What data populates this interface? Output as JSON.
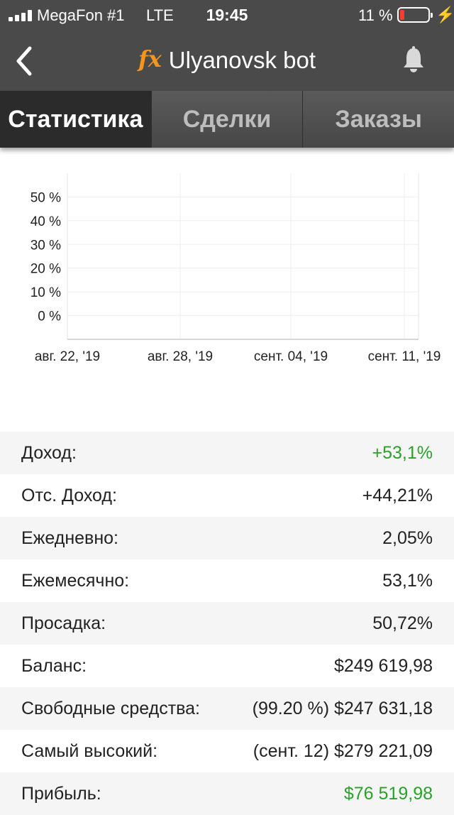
{
  "status": {
    "carrier": "MegaFon #1",
    "network": "LTE",
    "time": "19:45",
    "battery_percent": "11 %"
  },
  "header": {
    "logo": "fx",
    "title": "Ulyanovsk bot",
    "bell_icon": "bell-icon"
  },
  "tabs": [
    {
      "label": "Статистика",
      "active": true
    },
    {
      "label": "Сделки",
      "active": false
    },
    {
      "label": "Заказы",
      "active": false
    }
  ],
  "chart_data": {
    "type": "line",
    "x_tick_labels": [
      "авг. 22, '19",
      "авг. 28, '19",
      "сент. 04, '19",
      "сент. 11, '19"
    ],
    "y_tick_labels": [
      "50 %",
      "40 %",
      "30 %",
      "20 %",
      "10 %",
      "0 %"
    ],
    "ylim": [
      -10,
      60
    ],
    "x": [
      "2019-08-22",
      "2019-08-23",
      "2019-08-24",
      "2019-08-25",
      "2019-08-26",
      "2019-08-27",
      "2019-08-28",
      "2019-08-29",
      "2019-08-30",
      "2019-08-31",
      "2019-09-01",
      "2019-09-02",
      "2019-09-03",
      "2019-09-04",
      "2019-09-05",
      "2019-09-06",
      "2019-09-07",
      "2019-09-08",
      "2019-09-09",
      "2019-09-10",
      "2019-09-11",
      "2019-09-12"
    ],
    "series": [
      {
        "color": "#d9413a",
        "values": [
          null,
          null,
          null,
          null,
          null,
          null,
          null,
          null,
          null,
          null,
          null,
          null,
          null,
          null,
          null,
          null,
          null,
          null,
          null,
          null,
          null,
          null
        ]
      },
      {
        "color": "#f5c518",
        "values": [
          null,
          null,
          null,
          null,
          null,
          null,
          null,
          null,
          null,
          null,
          null,
          null,
          null,
          null,
          null,
          null,
          null,
          null,
          null,
          null,
          null,
          null
        ]
      }
    ],
    "grid": true
  },
  "stats": [
    {
      "label": "Доход:",
      "value": "+53,1%",
      "highlight": true
    },
    {
      "label": "Отс. Доход:",
      "value": "+44,21%",
      "highlight": false
    },
    {
      "label": "Ежедневно:",
      "value": "2,05%",
      "highlight": false
    },
    {
      "label": "Ежемесячно:",
      "value": "53,1%",
      "highlight": false
    },
    {
      "label": "Просадка:",
      "value": "50,72%",
      "highlight": false
    },
    {
      "label": "Баланс:",
      "value": "$249 619,98",
      "highlight": false
    },
    {
      "label": "Свободные средства:",
      "value": "(99.20 %) $247 631,18",
      "highlight": false
    },
    {
      "label": "Самый высокий:",
      "value": "(сент. 12) $279 221,09",
      "highlight": false
    },
    {
      "label": "Прибыль:",
      "value": "$76 519,98",
      "highlight": true
    }
  ]
}
